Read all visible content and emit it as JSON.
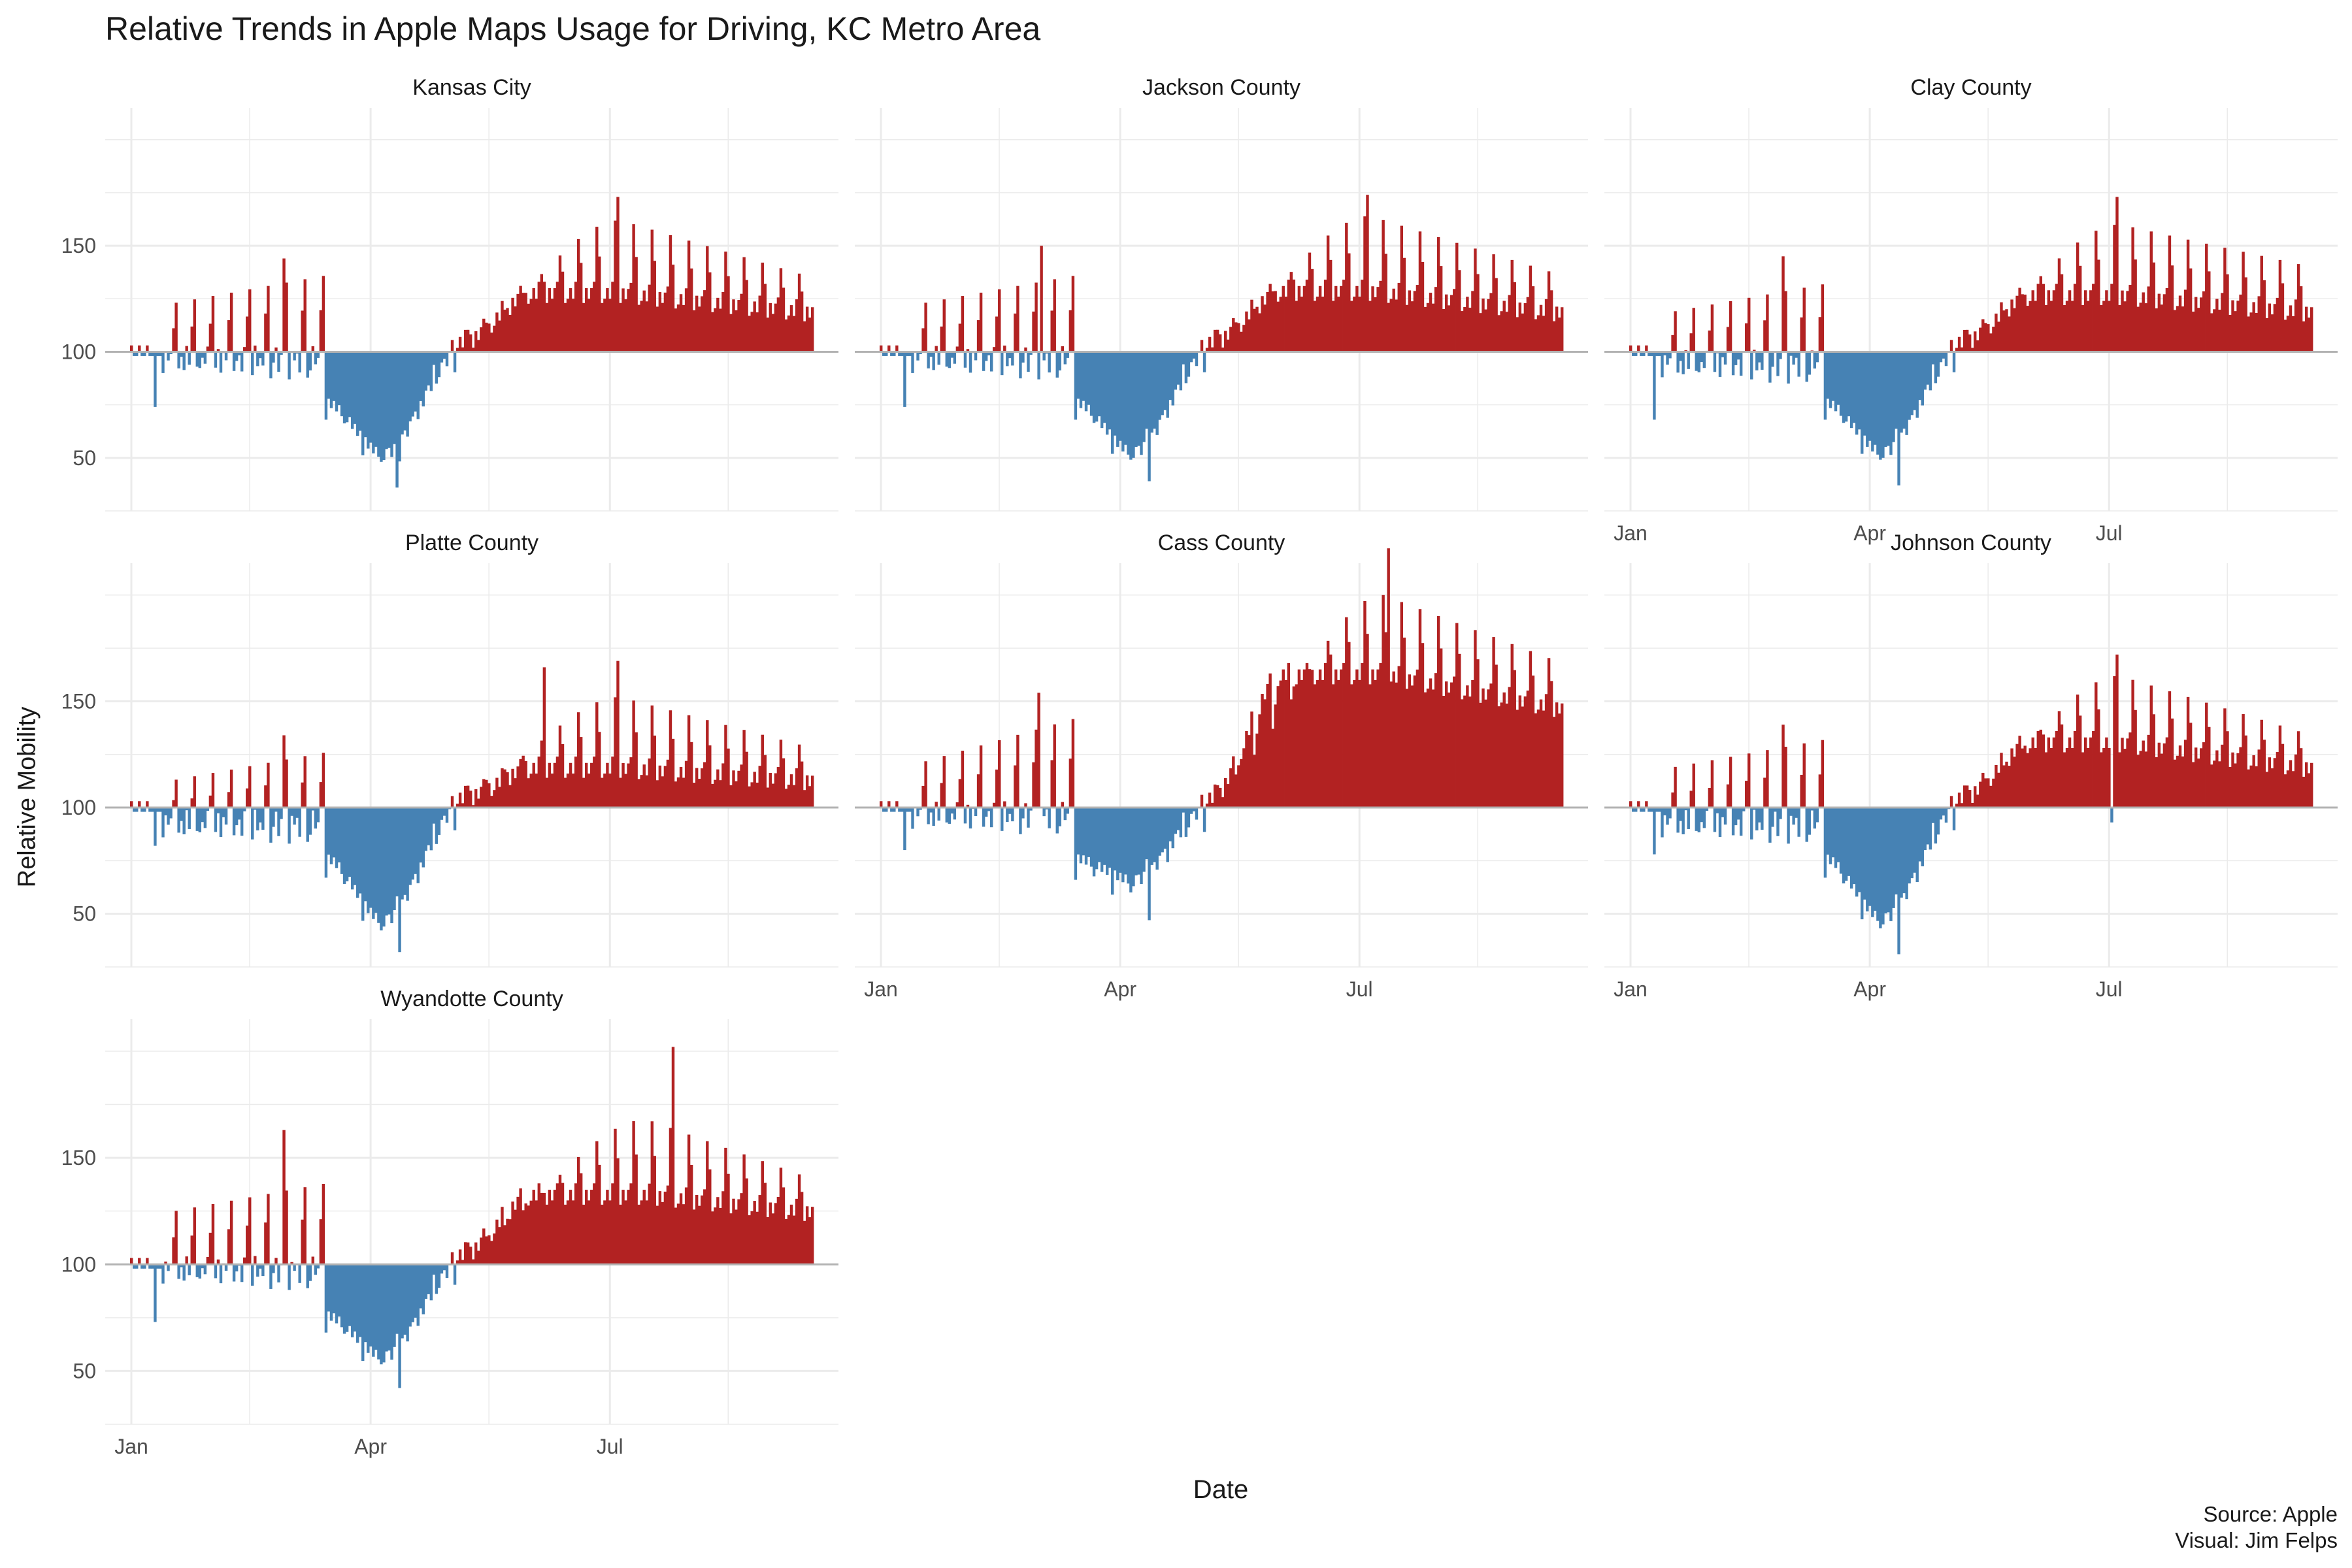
{
  "title": "Relative Trends in Apple Maps Usage for Driving, KC Metro Area",
  "xlabel": "Date",
  "ylabel": "Relative Mobility",
  "caption": {
    "line1": "Source: Apple",
    "line2": "Visual: Jim Felps"
  },
  "colors": {
    "above": "#B22222",
    "below": "#4682B4",
    "baseline": "#B3B3B3",
    "grid": "#EBEBEB",
    "text": "#4D4D4D"
  },
  "chart_data": {
    "type": "bar",
    "layout": "facet 3x3",
    "baseline": 100,
    "x_domain": [
      "2020-01-01",
      "2020-09-16"
    ],
    "x_ticks": [
      {
        "label": "Jan",
        "date": "2020-01-01"
      },
      {
        "label": "Apr",
        "date": "2020-04-01"
      },
      {
        "label": "Jul",
        "date": "2020-07-01"
      }
    ],
    "y_domain": [
      25,
      215
    ],
    "y_ticks": [
      50,
      100,
      150
    ],
    "grid": true,
    "panels": [
      {
        "name": "Kansas City",
        "x_axis_labels": false,
        "profile": {
          "early_weekday": 96,
          "early_weekend": 122,
          "early_slope": 14,
          "trough": 52,
          "trough_date": "2020-04-06",
          "trough_weekend": -6,
          "late_weekday": 127,
          "late_weekend": 162,
          "late_peak_date": "2020-07-05",
          "late_end_weekday": 118,
          "late_end_weekend": 135
        },
        "spikes": [
          {
            "date": "2020-01-10",
            "value": 74
          },
          {
            "date": "2020-02-28",
            "value": 144
          },
          {
            "date": "2020-04-11",
            "value": 36
          },
          {
            "date": "2020-07-04",
            "value": 173
          }
        ]
      },
      {
        "name": "Jackson County",
        "x_axis_labels": false,
        "profile": {
          "early_weekday": 96,
          "early_weekend": 122,
          "early_slope": 14,
          "trough": 53,
          "trough_date": "2020-04-06",
          "trough_weekend": -6,
          "late_weekday": 128,
          "late_weekend": 164,
          "late_peak_date": "2020-07-05",
          "late_end_weekday": 118,
          "late_end_weekend": 136
        },
        "spikes": [
          {
            "date": "2020-01-10",
            "value": 74
          },
          {
            "date": "2020-03-02",
            "value": 150
          },
          {
            "date": "2020-04-12",
            "value": 39
          },
          {
            "date": "2020-07-04",
            "value": 174
          }
        ]
      },
      {
        "name": "Clay County",
        "x_axis_labels": true,
        "profile": {
          "early_weekday": 94,
          "early_weekend": 118,
          "early_slope": 14,
          "trough": 53,
          "trough_date": "2020-04-06",
          "trough_weekend": -6,
          "late_weekday": 126,
          "late_weekend": 160,
          "late_peak_date": "2020-07-05",
          "late_end_weekday": 118,
          "late_end_weekend": 140
        },
        "spikes": [
          {
            "date": "2020-01-10",
            "value": 68
          },
          {
            "date": "2020-02-28",
            "value": 145
          },
          {
            "date": "2020-04-12",
            "value": 37
          },
          {
            "date": "2020-07-04",
            "value": 173
          }
        ]
      },
      {
        "name": "Platte County",
        "x_axis_labels": false,
        "profile": {
          "early_weekday": 92,
          "early_weekend": 112,
          "early_slope": 14,
          "trough": 47,
          "trough_date": "2020-04-06",
          "trough_weekend": -7,
          "late_weekday": 118,
          "late_weekend": 152,
          "late_peak_date": "2020-07-05",
          "late_end_weekday": 112,
          "late_end_weekend": 128
        },
        "spikes": [
          {
            "date": "2020-01-10",
            "value": 82
          },
          {
            "date": "2020-02-28",
            "value": 134
          },
          {
            "date": "2020-04-12",
            "value": 32
          },
          {
            "date": "2020-06-06",
            "value": 166
          },
          {
            "date": "2020-07-04",
            "value": 169
          }
        ]
      },
      {
        "name": "Cass County",
        "x_axis_labels": true,
        "profile": {
          "early_weekday": 96,
          "early_weekend": 120,
          "early_slope": 22,
          "trough": 66,
          "trough_date": "2020-04-06",
          "trough_weekend": -8,
          "late_weekday": 162,
          "late_weekend": 200,
          "late_peak_date": "2020-07-10",
          "late_end_weekday": 146,
          "late_end_weekend": 168
        },
        "spikes": [
          {
            "date": "2020-01-10",
            "value": 80
          },
          {
            "date": "2020-03-01",
            "value": 154
          },
          {
            "date": "2020-04-12",
            "value": 47
          },
          {
            "date": "2020-07-12",
            "value": 222
          }
        ]
      },
      {
        "name": "Johnson County",
        "x_axis_labels": true,
        "profile": {
          "early_weekday": 92,
          "early_weekend": 118,
          "early_slope": 14,
          "trough": 48,
          "trough_date": "2020-04-06",
          "trough_weekend": -7,
          "late_weekday": 130,
          "late_weekend": 162,
          "late_peak_date": "2020-07-05",
          "late_end_weekday": 118,
          "late_end_weekend": 134
        },
        "spikes": [
          {
            "date": "2020-01-10",
            "value": 78
          },
          {
            "date": "2020-02-28",
            "value": 139
          },
          {
            "date": "2020-04-12",
            "value": 31
          },
          {
            "date": "2020-07-02",
            "value": 93
          },
          {
            "date": "2020-07-04",
            "value": 172
          }
        ]
      },
      {
        "name": "Wyandotte County",
        "x_axis_labels": true,
        "profile": {
          "early_weekday": 97,
          "early_weekend": 124,
          "early_slope": 14,
          "trough": 57,
          "trough_date": "2020-04-06",
          "trough_weekend": -6,
          "late_weekday": 132,
          "late_weekend": 168,
          "late_peak_date": "2020-07-15",
          "late_end_weekday": 124,
          "late_end_weekend": 140
        },
        "spikes": [
          {
            "date": "2020-01-10",
            "value": 73
          },
          {
            "date": "2020-02-28",
            "value": 163
          },
          {
            "date": "2020-04-12",
            "value": 42
          },
          {
            "date": "2020-07-25",
            "value": 202
          }
        ]
      }
    ]
  }
}
